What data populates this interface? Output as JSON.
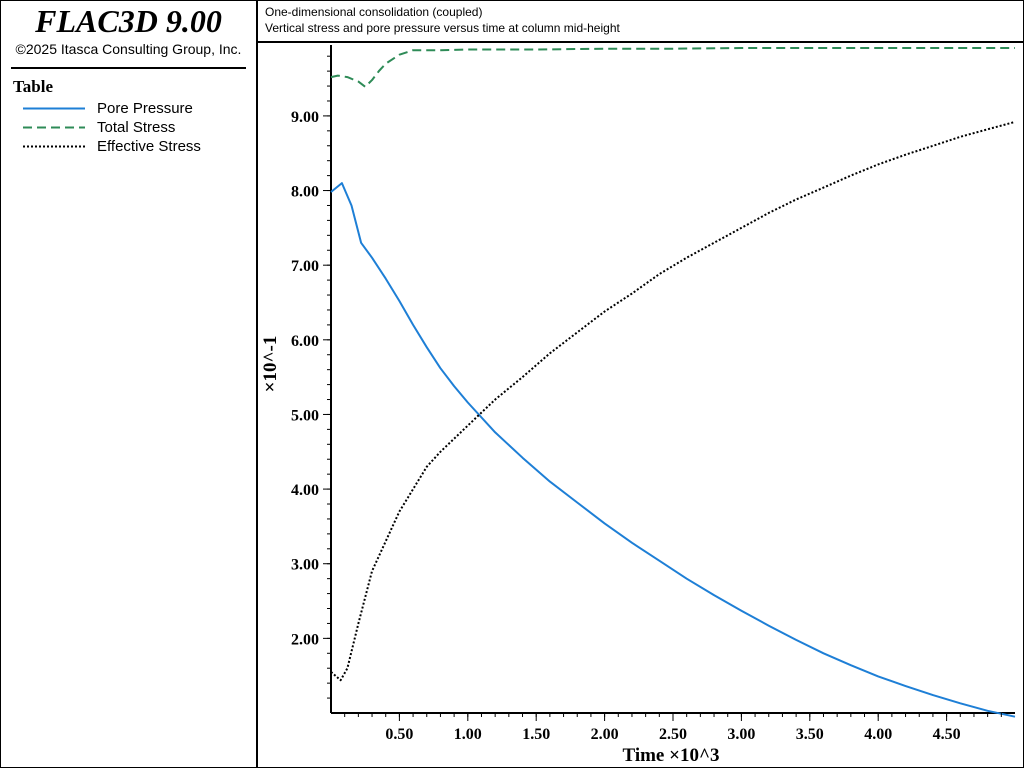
{
  "app": {
    "title": "FLAC3D 9.00",
    "copyright": "©2025 Itasca Consulting Group, Inc."
  },
  "legend": {
    "heading": "Table",
    "items": [
      {
        "label": "Pore Pressure",
        "color": "#1e7fd6",
        "dash": "solid"
      },
      {
        "label": "Total Stress",
        "color": "#2e8b57",
        "dash": "dashed"
      },
      {
        "label": "Effective Stress",
        "color": "#000000",
        "dash": "dotted"
      }
    ]
  },
  "header": {
    "title": "One-dimensional consolidation (coupled)",
    "subtitle": "Vertical stress and pore pressure versus time at column mid-height"
  },
  "chart_data": {
    "type": "line",
    "title": "One-dimensional consolidation (coupled)",
    "subtitle": "Vertical stress and pore pressure versus time at column mid-height",
    "xlabel": "Time ×10^3",
    "ylabel": "×10^-1",
    "xlim": [
      0.0,
      5.0
    ],
    "ylim": [
      1.0,
      9.95
    ],
    "x_ticks": [
      0.5,
      1.0,
      1.5,
      2.0,
      2.5,
      3.0,
      3.5,
      4.0,
      4.5
    ],
    "x_tick_labels": [
      "0.50",
      "1.00",
      "1.50",
      "2.00",
      "2.50",
      "3.00",
      "3.50",
      "4.00",
      "4.50"
    ],
    "y_ticks": [
      2.0,
      3.0,
      4.0,
      5.0,
      6.0,
      7.0,
      8.0,
      9.0
    ],
    "y_tick_labels": [
      "2.00",
      "3.00",
      "4.00",
      "5.00",
      "6.00",
      "7.00",
      "8.00",
      "9.00"
    ],
    "x_minor_step": 0.1,
    "y_minor_step": 0.2,
    "grid": false,
    "legend_position": "left-panel",
    "series": [
      {
        "name": "Pore Pressure",
        "color": "#1e7fd6",
        "dash": "solid",
        "points": [
          [
            0.0,
            7.98
          ],
          [
            0.08,
            8.1
          ],
          [
            0.15,
            7.8
          ],
          [
            0.22,
            7.3
          ],
          [
            0.3,
            7.1
          ],
          [
            0.4,
            6.82
          ],
          [
            0.5,
            6.52
          ],
          [
            0.6,
            6.2
          ],
          [
            0.7,
            5.9
          ],
          [
            0.8,
            5.62
          ],
          [
            0.9,
            5.38
          ],
          [
            1.0,
            5.16
          ],
          [
            1.2,
            4.76
          ],
          [
            1.4,
            4.42
          ],
          [
            1.6,
            4.1
          ],
          [
            1.8,
            3.82
          ],
          [
            2.0,
            3.54
          ],
          [
            2.2,
            3.28
          ],
          [
            2.4,
            3.04
          ],
          [
            2.6,
            2.8
          ],
          [
            2.8,
            2.58
          ],
          [
            3.0,
            2.37
          ],
          [
            3.2,
            2.17
          ],
          [
            3.4,
            1.98
          ],
          [
            3.6,
            1.8
          ],
          [
            3.8,
            1.64
          ],
          [
            4.0,
            1.49
          ],
          [
            4.2,
            1.36
          ],
          [
            4.4,
            1.24
          ],
          [
            4.6,
            1.13
          ],
          [
            4.8,
            1.03
          ],
          [
            5.0,
            0.95
          ]
        ]
      },
      {
        "name": "Total Stress",
        "color": "#2e8b57",
        "dash": "dashed",
        "points": [
          [
            0.0,
            9.52
          ],
          [
            0.05,
            9.54
          ],
          [
            0.12,
            9.52
          ],
          [
            0.2,
            9.46
          ],
          [
            0.25,
            9.39
          ],
          [
            0.3,
            9.48
          ],
          [
            0.35,
            9.6
          ],
          [
            0.4,
            9.7
          ],
          [
            0.5,
            9.82
          ],
          [
            0.6,
            9.88
          ],
          [
            0.8,
            9.88
          ],
          [
            1.0,
            9.89
          ],
          [
            1.5,
            9.89
          ],
          [
            2.0,
            9.9
          ],
          [
            2.5,
            9.9
          ],
          [
            3.0,
            9.91
          ],
          [
            3.5,
            9.91
          ],
          [
            4.0,
            9.91
          ],
          [
            4.5,
            9.91
          ],
          [
            5.0,
            9.91
          ]
        ]
      },
      {
        "name": "Effective Stress",
        "color": "#000000",
        "dash": "dotted",
        "points": [
          [
            0.0,
            1.55
          ],
          [
            0.07,
            1.44
          ],
          [
            0.12,
            1.6
          ],
          [
            0.2,
            2.2
          ],
          [
            0.3,
            2.9
          ],
          [
            0.4,
            3.3
          ],
          [
            0.5,
            3.7
          ],
          [
            0.6,
            4.0
          ],
          [
            0.7,
            4.3
          ],
          [
            0.8,
            4.5
          ],
          [
            1.0,
            4.85
          ],
          [
            1.2,
            5.2
          ],
          [
            1.4,
            5.5
          ],
          [
            1.6,
            5.82
          ],
          [
            1.8,
            6.1
          ],
          [
            2.0,
            6.38
          ],
          [
            2.2,
            6.62
          ],
          [
            2.4,
            6.88
          ],
          [
            2.6,
            7.1
          ],
          [
            2.8,
            7.3
          ],
          [
            3.0,
            7.5
          ],
          [
            3.2,
            7.7
          ],
          [
            3.4,
            7.88
          ],
          [
            3.6,
            8.04
          ],
          [
            3.8,
            8.2
          ],
          [
            4.0,
            8.35
          ],
          [
            4.2,
            8.48
          ],
          [
            4.4,
            8.6
          ],
          [
            4.6,
            8.72
          ],
          [
            4.8,
            8.82
          ],
          [
            5.0,
            8.92
          ]
        ]
      }
    ]
  }
}
